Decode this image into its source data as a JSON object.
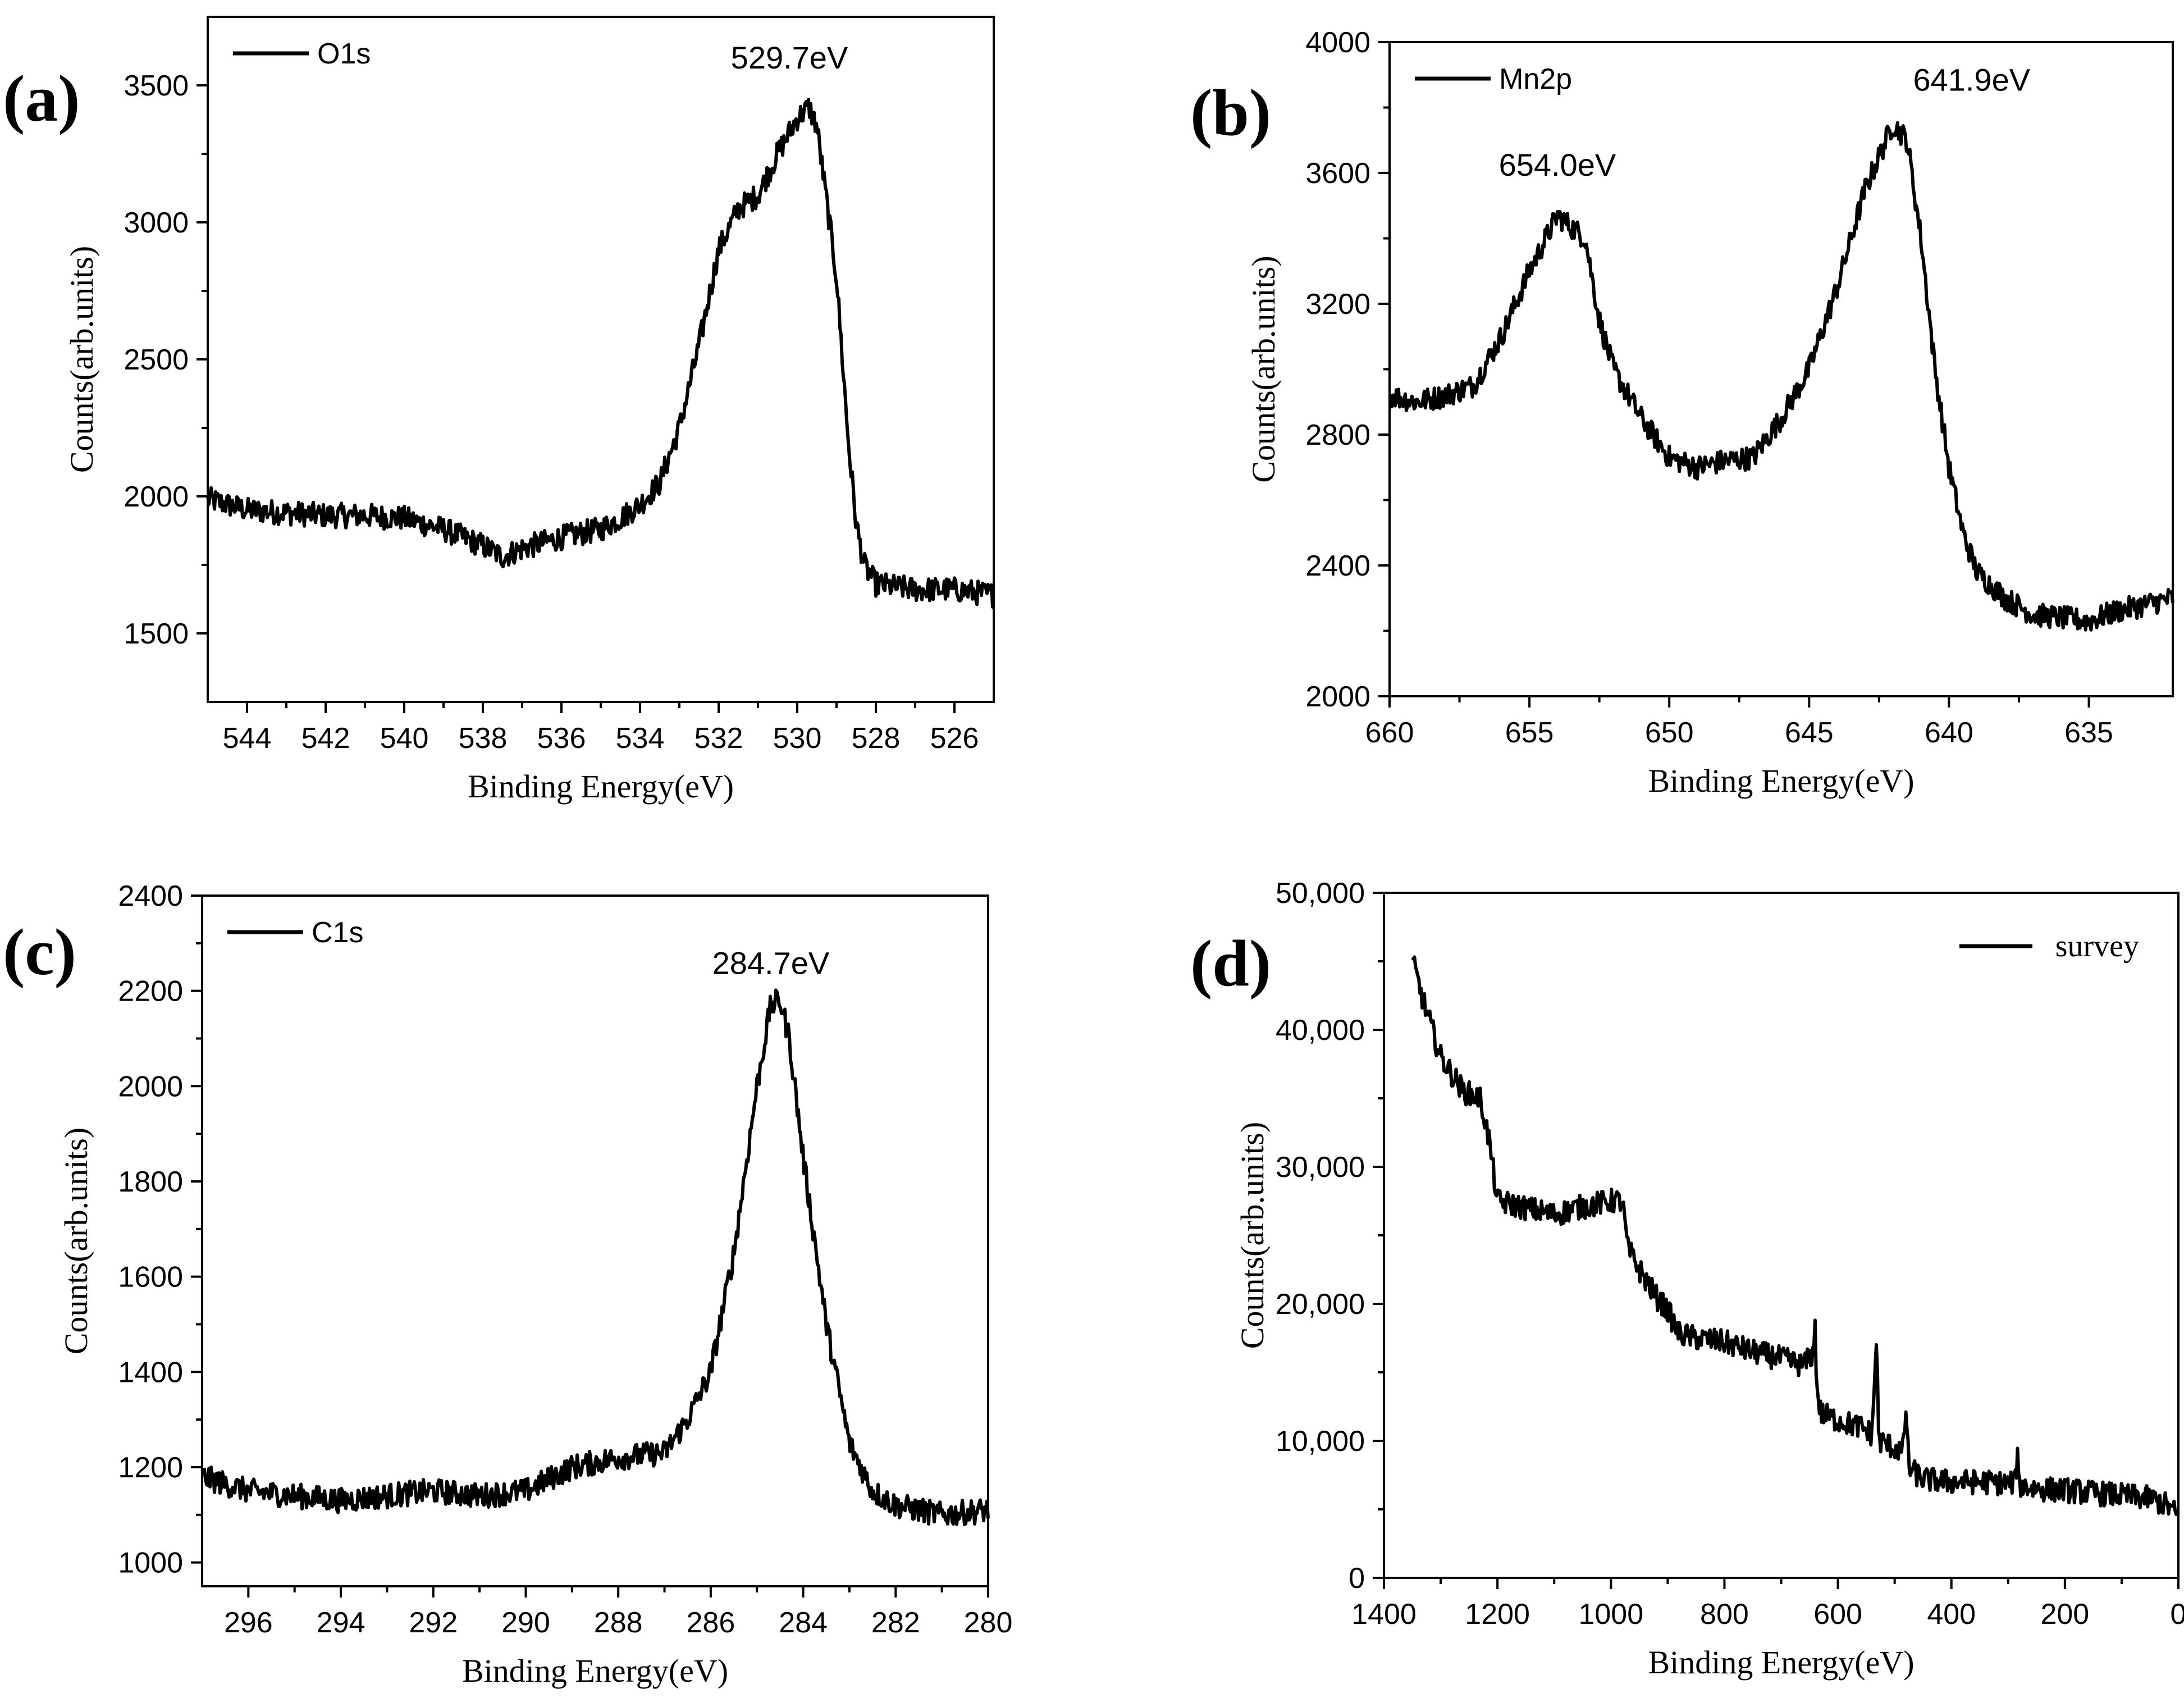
{
  "chart_data": [
    {
      "id": "a",
      "type": "line",
      "panel_label": "(a)",
      "xlabel": "Binding Energy(eV)",
      "ylabel": "Counts(arb.units)",
      "xlim": [
        545,
        525
      ],
      "ylim": [
        1250,
        3750
      ],
      "xticks": [
        544,
        542,
        540,
        538,
        536,
        534,
        532,
        530,
        528,
        526
      ],
      "xtick_labels": [
        "544",
        "542",
        "540",
        "538",
        "536",
        "534",
        "532",
        "530",
        "528",
        "526"
      ],
      "yticks": [
        1500,
        2000,
        2500,
        3000,
        3500
      ],
      "ytick_labels": [
        "1500",
        "2000",
        "2500",
        "3000",
        "3500"
      ],
      "legend": "O1s",
      "legend_position": "top-left",
      "annotations": [
        {
          "text": "529.7eV",
          "x": 530.2,
          "y": 3500
        }
      ],
      "series": [
        {
          "name": "O1s",
          "points": [
            [
              545,
              1990
            ],
            [
              544,
              1950
            ],
            [
              543,
              1940
            ],
            [
              542,
              1930
            ],
            [
              541,
              1930
            ],
            [
              540,
              1920
            ],
            [
              539,
              1880
            ],
            [
              538,
              1820
            ],
            [
              537.5,
              1780
            ],
            [
              537,
              1810
            ],
            [
              536,
              1850
            ],
            [
              535,
              1880
            ],
            [
              534.5,
              1920
            ],
            [
              534,
              1970
            ],
            [
              533.5,
              2050
            ],
            [
              533,
              2250
            ],
            [
              532.5,
              2550
            ],
            [
              532,
              2900
            ],
            [
              531.5,
              3050
            ],
            [
              531,
              3100
            ],
            [
              530.5,
              3250
            ],
            [
              530,
              3380
            ],
            [
              529.7,
              3420
            ],
            [
              529.5,
              3350
            ],
            [
              529,
              2800
            ],
            [
              528.7,
              2200
            ],
            [
              528.5,
              1900
            ],
            [
              528.3,
              1750
            ],
            [
              528,
              1680
            ],
            [
              527,
              1660
            ],
            [
              526,
              1660
            ],
            [
              525,
              1640
            ]
          ]
        }
      ]
    },
    {
      "id": "b",
      "type": "line",
      "panel_label": "(b)",
      "xlabel": "Binding Energy(eV)",
      "ylabel": "Counts(arb.units)",
      "xlim": [
        660,
        632
      ],
      "ylim": [
        2000,
        4000
      ],
      "xticks": [
        660,
        655,
        650,
        645,
        640,
        635
      ],
      "xtick_labels": [
        "660",
        "655",
        "650",
        "645",
        "640",
        "635"
      ],
      "yticks": [
        2000,
        2400,
        2800,
        3200,
        3600,
        4000
      ],
      "ytick_labels": [
        "2000",
        "2400",
        "2800",
        "3200",
        "3600",
        "4000"
      ],
      "legend": "Mn2p",
      "legend_position": "top-left",
      "annotations": [
        {
          "text": "654.0eV",
          "x": 654.0,
          "y": 3540
        },
        {
          "text": "641.9eV",
          "x": 641.9,
          "y": 3800
        }
      ],
      "series": [
        {
          "name": "Mn2p",
          "points": [
            [
              660,
              2920
            ],
            [
              659,
              2900
            ],
            [
              658,
              2920
            ],
            [
              657,
              2950
            ],
            [
              656,
              3100
            ],
            [
              655,
              3300
            ],
            [
              654,
              3470
            ],
            [
              653,
              3400
            ],
            [
              652.5,
              3150
            ],
            [
              652,
              3000
            ],
            [
              651,
              2850
            ],
            [
              650,
              2730
            ],
            [
              649,
              2700
            ],
            [
              648,
              2720
            ],
            [
              647,
              2730
            ],
            [
              646,
              2850
            ],
            [
              645,
              3000
            ],
            [
              644,
              3250
            ],
            [
              643,
              3550
            ],
            [
              642,
              3750
            ],
            [
              641.5,
              3700
            ],
            [
              641,
              3400
            ],
            [
              640.5,
              3000
            ],
            [
              640,
              2700
            ],
            [
              639.5,
              2500
            ],
            [
              639,
              2380
            ],
            [
              638,
              2300
            ],
            [
              637,
              2250
            ],
            [
              636,
              2240
            ],
            [
              635,
              2230
            ],
            [
              634,
              2260
            ],
            [
              633,
              2280
            ],
            [
              632,
              2300
            ]
          ]
        }
      ]
    },
    {
      "id": "c",
      "type": "line",
      "panel_label": "(c)",
      "xlabel": "Binding Energy(eV)",
      "ylabel": "Counts(arb.units)",
      "xlim": [
        297,
        280
      ],
      "ylim": [
        950,
        2400
      ],
      "xticks": [
        296,
        294,
        292,
        290,
        288,
        286,
        284,
        282,
        280
      ],
      "xtick_labels": [
        "296",
        "294",
        "292",
        "290",
        "288",
        "286",
        "284",
        "282",
        "280"
      ],
      "yticks": [
        1000,
        1200,
        1400,
        1600,
        1800,
        2000,
        2200,
        2400
      ],
      "ytick_labels": [
        "1000",
        "1200",
        "1400",
        "1600",
        "1800",
        "2000",
        "2200",
        "2400"
      ],
      "legend": "C1s",
      "legend_position": "top-left",
      "annotations": [
        {
          "text": "284.7eV",
          "x": 284.7,
          "y": 2200
        }
      ],
      "series": [
        {
          "name": "C1s",
          "points": [
            [
              297,
              1180
            ],
            [
              296,
              1150
            ],
            [
              295,
              1140
            ],
            [
              294,
              1130
            ],
            [
              293,
              1140
            ],
            [
              292,
              1150
            ],
            [
              291,
              1140
            ],
            [
              290,
              1150
            ],
            [
              289,
              1200
            ],
            [
              288,
              1220
            ],
            [
              287,
              1230
            ],
            [
              286.5,
              1300
            ],
            [
              286,
              1400
            ],
            [
              285.5,
              1650
            ],
            [
              285,
              2000
            ],
            [
              284.7,
              2170
            ],
            [
              284.5,
              2180
            ],
            [
              284.3,
              2100
            ],
            [
              284,
              1850
            ],
            [
              283.5,
              1500
            ],
            [
              283,
              1250
            ],
            [
              282.5,
              1150
            ],
            [
              282,
              1120
            ],
            [
              281,
              1100
            ],
            [
              280,
              1110
            ]
          ]
        }
      ]
    },
    {
      "id": "d",
      "type": "line",
      "panel_label": "(d)",
      "xlabel": "Binding Energy(eV)",
      "ylabel": "Counts(arb.units)",
      "xlim": [
        1400,
        0
      ],
      "ylim": [
        0,
        50000
      ],
      "xticks": [
        1400,
        1200,
        1000,
        800,
        600,
        400,
        200,
        0
      ],
      "xtick_labels": [
        "1400",
        "1200",
        "1000",
        "800",
        "600",
        "400",
        "200",
        "0"
      ],
      "yticks": [
        0,
        10000,
        20000,
        30000,
        40000,
        50000
      ],
      "ytick_labels": [
        "0",
        "10,000",
        "20,000",
        "30,000",
        "40,000",
        "50,000"
      ],
      "legend": "survey",
      "legend_position": "top-right",
      "annotations": [],
      "series": [
        {
          "name": "survey",
          "points": [
            [
              1350,
              45000
            ],
            [
              1330,
              42000
            ],
            [
              1300,
              38000
            ],
            [
              1260,
              35500
            ],
            [
              1230,
              35000
            ],
            [
              1215,
              32000
            ],
            [
              1200,
              27500
            ],
            [
              1150,
              27000
            ],
            [
              1100,
              26500
            ],
            [
              1060,
              27000
            ],
            [
              1000,
              27500
            ],
            [
              980,
              27500
            ],
            [
              970,
              24000
            ],
            [
              950,
              22500
            ],
            [
              920,
              20500
            ],
            [
              900,
              19500
            ],
            [
              880,
              17800
            ],
            [
              850,
              17500
            ],
            [
              800,
              17200
            ],
            [
              750,
              16500
            ],
            [
              700,
              16000
            ],
            [
              660,
              15500
            ],
            [
              642,
              16500
            ],
            [
              640,
              20000
            ],
            [
              638,
              14000
            ],
            [
              630,
              12000
            ],
            [
              600,
              11500
            ],
            [
              560,
              11000
            ],
            [
              540,
              10500
            ],
            [
              532,
              17500
            ],
            [
              528,
              10000
            ],
            [
              500,
              9500
            ],
            [
              485,
              9200
            ],
            [
              480,
              12500
            ],
            [
              475,
              8000
            ],
            [
              450,
              7200
            ],
            [
              400,
              7000
            ],
            [
              350,
              7000
            ],
            [
              300,
              6900
            ],
            [
              286,
              7000
            ],
            [
              284,
              10800
            ],
            [
              282,
              6800
            ],
            [
              250,
              6500
            ],
            [
              200,
              6400
            ],
            [
              150,
              6200
            ],
            [
              100,
              6000
            ],
            [
              50,
              5800
            ],
            [
              20,
              5300
            ],
            [
              0,
              4500
            ]
          ]
        }
      ]
    }
  ]
}
